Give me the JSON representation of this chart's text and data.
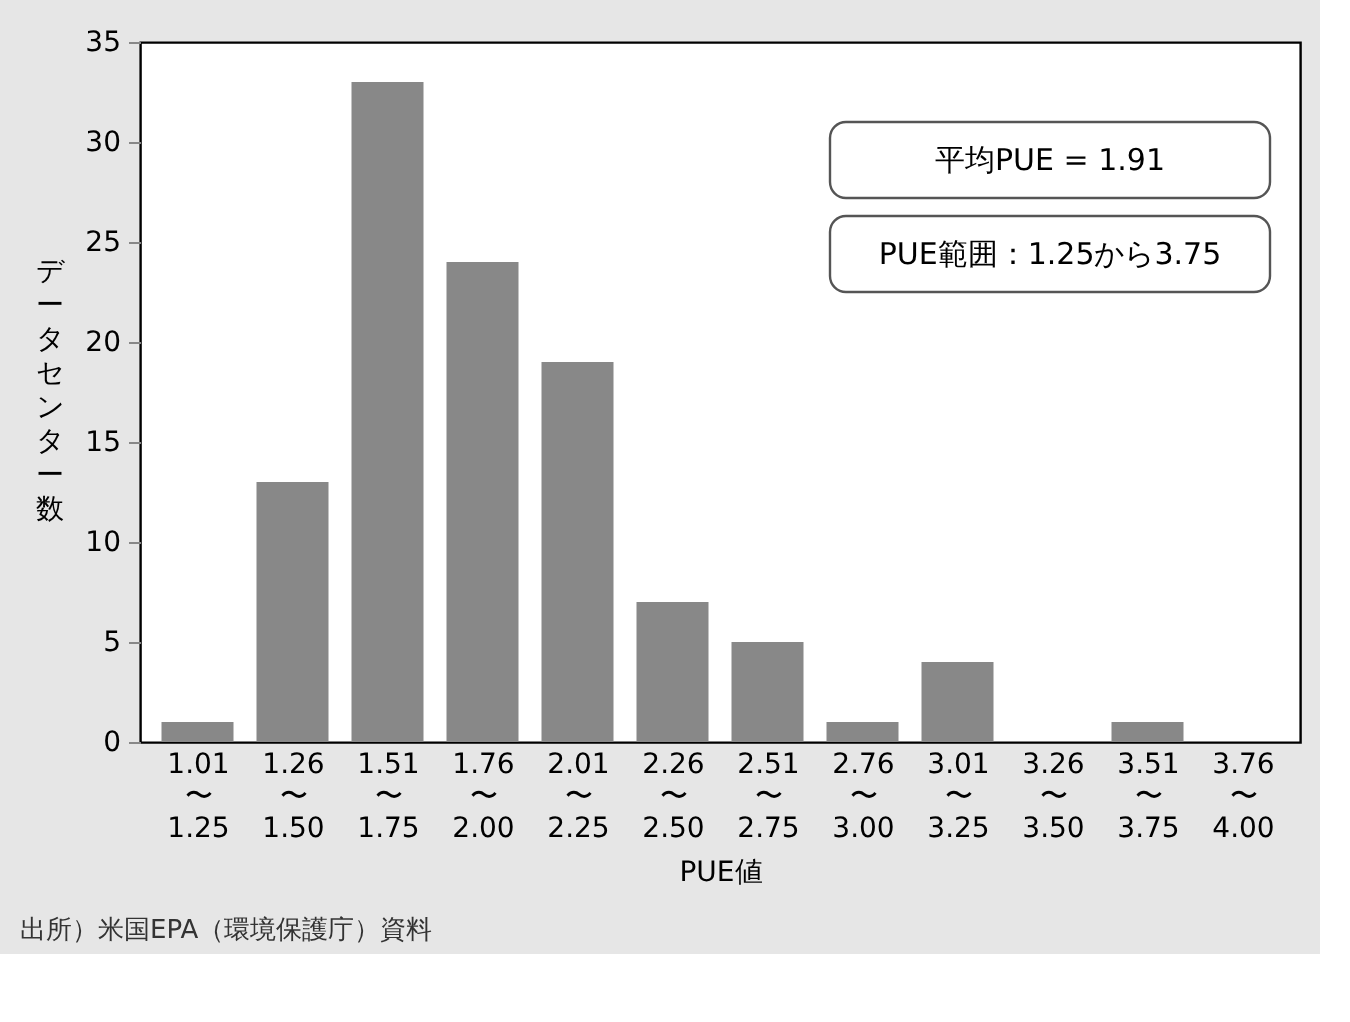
{
  "chart_data": {
    "type": "bar",
    "xlabel": "PUE値",
    "ylabel": "データセンター数",
    "categories": [
      "1.01\n〜\n1.25",
      "1.26\n〜\n1.50",
      "1.51\n〜\n1.75",
      "1.76\n〜\n2.00",
      "2.01\n〜\n2.25",
      "2.26\n〜\n2.50",
      "2.51\n〜\n2.75",
      "2.76\n〜\n3.00",
      "3.01\n〜\n3.25",
      "3.26\n〜\n3.50",
      "3.51\n〜\n3.75",
      "3.76\n〜\n4.00"
    ],
    "values": [
      1,
      13,
      33,
      24,
      19,
      7,
      5,
      1,
      4,
      0,
      1,
      0
    ],
    "color": "#888888",
    "ylim": [
      0,
      35
    ],
    "yticks": [
      0,
      5,
      10,
      15,
      20,
      25,
      30,
      35
    ],
    "grid": false,
    "annotations": [
      "平均PUE = 1.91",
      "PUE範囲：1.25から3.75",
      "出所）米国EPA（環境保護庁）資料"
    ]
  }
}
